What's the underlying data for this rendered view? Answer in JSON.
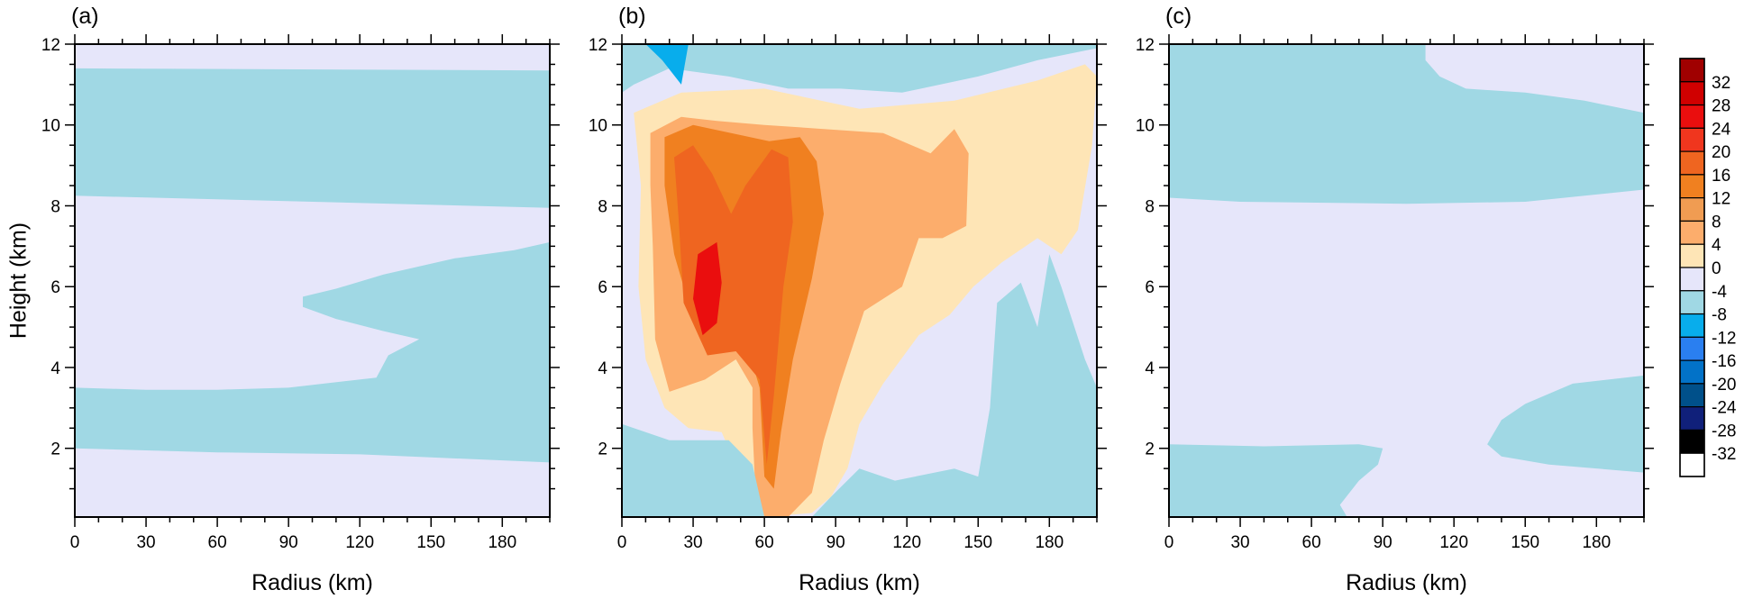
{
  "chart_data": [
    {
      "type": "contour",
      "panel_label": "(a)",
      "xlabel": "Radius (km)",
      "ylabel": "Height (km)",
      "xlim": [
        0,
        200
      ],
      "ylim": [
        0.3,
        12
      ],
      "xticks": [
        "0",
        "30",
        "60",
        "90",
        "120",
        "150",
        "180"
      ],
      "yticks": [
        "2",
        "4",
        "6",
        "8",
        "10",
        "12"
      ],
      "contour_regions": [
        {
          "level": "-4 to 0",
          "description": "upper band",
          "shape": [
            [
              0,
              11.4
            ],
            [
              200,
              11.35
            ],
            [
              200,
              7.95
            ],
            [
              0,
              8.25
            ]
          ]
        },
        {
          "level": "-4 to 0",
          "description": "mid-level wedge",
          "shape": [
            [
              200,
              7.1
            ],
            [
              185,
              6.9
            ],
            [
              160,
              6.7
            ],
            [
              130,
              6.3
            ],
            [
              110,
              5.95
            ],
            [
              96,
              5.75
            ],
            [
              96,
              5.5
            ],
            [
              110,
              5.2
            ],
            [
              130,
              4.9
            ],
            [
              145,
              4.7
            ],
            [
              132,
              4.3
            ],
            [
              127,
              3.75
            ],
            [
              90,
              3.5
            ],
            [
              60,
              3.45
            ],
            [
              30,
              3.45
            ],
            [
              0,
              3.5
            ],
            [
              0,
              2.0
            ],
            [
              60,
              1.9
            ],
            [
              120,
              1.85
            ],
            [
              200,
              1.65
            ]
          ]
        }
      ]
    },
    {
      "type": "contour",
      "panel_label": "(b)",
      "xlabel": "Radius (km)",
      "ylabel": "",
      "xlim": [
        0,
        200
      ],
      "ylim": [
        0.3,
        12
      ],
      "xticks": [
        "0",
        "30",
        "60",
        "90",
        "120",
        "150",
        "180"
      ],
      "yticks": [
        "2",
        "4",
        "6",
        "8",
        "10",
        "12"
      ],
      "contour_regions": [
        {
          "level": "0 to 4",
          "description": "broad positive band",
          "shape": [
            [
              5,
              10.3
            ],
            [
              25,
              10.8
            ],
            [
              60,
              10.9
            ],
            [
              100,
              10.4
            ],
            [
              140,
              10.6
            ],
            [
              175,
              11.1
            ],
            [
              195,
              11.5
            ],
            [
              200,
              11.2
            ],
            [
              198,
              9.5
            ],
            [
              192,
              7.4
            ],
            [
              185,
              6.8
            ],
            [
              175,
              7.2
            ],
            [
              160,
              6.6
            ],
            [
              148,
              6.0
            ],
            [
              138,
              5.3
            ],
            [
              125,
              4.8
            ],
            [
              110,
              3.6
            ],
            [
              100,
              2.6
            ],
            [
              95,
              1.5
            ],
            [
              88,
              0.8
            ],
            [
              80,
              0.4
            ],
            [
              60,
              0.3
            ],
            [
              50,
              1.3
            ],
            [
              42,
              2.4
            ],
            [
              28,
              2.5
            ],
            [
              18,
              3.0
            ],
            [
              10,
              4.2
            ],
            [
              7,
              6.0
            ],
            [
              8,
              8.5
            ]
          ]
        },
        {
          "level": "4 to 8",
          "description": "deep convective tower",
          "shape": [
            [
              12,
              9.8
            ],
            [
              25,
              10.2
            ],
            [
              40,
              10.1
            ],
            [
              60,
              10.0
            ],
            [
              85,
              9.9
            ],
            [
              110,
              9.8
            ],
            [
              130,
              9.3
            ],
            [
              140,
              9.9
            ],
            [
              146,
              9.3
            ],
            [
              145,
              7.5
            ],
            [
              135,
              7.2
            ],
            [
              125,
              7.2
            ],
            [
              118,
              6.0
            ],
            [
              102,
              5.4
            ],
            [
              92,
              3.6
            ],
            [
              85,
              2.2
            ],
            [
              80,
              0.9
            ],
            [
              70,
              0.3
            ],
            [
              60,
              0.3
            ],
            [
              56,
              1.2
            ],
            [
              55,
              2.5
            ],
            [
              55,
              3.5
            ],
            [
              48,
              4.2
            ],
            [
              35,
              3.7
            ],
            [
              20,
              3.4
            ],
            [
              14,
              4.7
            ],
            [
              13,
              7.0
            ],
            [
              12,
              8.5
            ]
          ]
        },
        {
          "level": "8 to 12",
          "description": "core",
          "shape": [
            [
              18,
              9.7
            ],
            [
              30,
              10.0
            ],
            [
              46,
              9.8
            ],
            [
              62,
              9.6
            ],
            [
              75,
              9.7
            ],
            [
              82,
              9.1
            ],
            [
              85,
              7.8
            ],
            [
              80,
              6.2
            ],
            [
              72,
              4.2
            ],
            [
              67,
              2.4
            ],
            [
              64,
              1.0
            ],
            [
              60,
              1.3
            ],
            [
              58,
              3.5
            ],
            [
              52,
              4.7
            ],
            [
              40,
              4.4
            ],
            [
              30,
              5.2
            ],
            [
              22,
              6.8
            ],
            [
              18,
              8.5
            ]
          ]
        },
        {
          "level": "12 to 16",
          "description": "inner core",
          "shape": [
            [
              22,
              9.2
            ],
            [
              30,
              9.5
            ],
            [
              38,
              8.8
            ],
            [
              46,
              7.8
            ],
            [
              52,
              8.5
            ],
            [
              63,
              9.4
            ],
            [
              70,
              9.2
            ],
            [
              72,
              7.6
            ],
            [
              68,
              6.0
            ],
            [
              64,
              3.3
            ],
            [
              61,
              1.6
            ],
            [
              58,
              3.7
            ],
            [
              48,
              4.4
            ],
            [
              36,
              4.3
            ],
            [
              26,
              5.6
            ],
            [
              24,
              7.6
            ]
          ]
        },
        {
          "level": "16 to 20",
          "description": "maxima",
          "shape": [
            [
              32,
              6.8
            ],
            [
              40,
              7.1
            ],
            [
              42,
              6.1
            ],
            [
              40,
              5.1
            ],
            [
              34,
              4.8
            ],
            [
              30,
              5.7
            ]
          ]
        },
        {
          "level": "-4 to 0",
          "description": "upper negative",
          "shape": [
            [
              0,
              12.0
            ],
            [
              200,
              12.0
            ],
            [
              200,
              11.9
            ],
            [
              175,
              11.6
            ],
            [
              150,
              11.2
            ],
            [
              118,
              10.8
            ],
            [
              92,
              10.9
            ],
            [
              70,
              10.9
            ],
            [
              45,
              11.2
            ],
            [
              20,
              11.4
            ],
            [
              5,
              11.0
            ],
            [
              0,
              10.8
            ]
          ]
        },
        {
          "level": "-8 to -4",
          "description": "upper strong negative",
          "shape": [
            [
              10,
              12.0
            ],
            [
              28,
              12.0
            ],
            [
              25,
              11.0
            ],
            [
              17,
              11.6
            ]
          ]
        },
        {
          "level": "-4 to 0",
          "description": "lower negative",
          "shape": [
            [
              0,
              2.6
            ],
            [
              20,
              2.2
            ],
            [
              45,
              2.2
            ],
            [
              55,
              1.6
            ],
            [
              60,
              0.3
            ],
            [
              0,
              0.3
            ]
          ]
        },
        {
          "level": "-4 to 0",
          "description": "outer lower negative",
          "shape": [
            [
              88,
              0.8
            ],
            [
              100,
              1.5
            ],
            [
              115,
              1.2
            ],
            [
              140,
              1.5
            ],
            [
              150,
              1.3
            ],
            [
              155,
              3.0
            ],
            [
              158,
              5.6
            ],
            [
              168,
              6.1
            ],
            [
              175,
              5.0
            ],
            [
              180,
              6.8
            ],
            [
              185,
              6.0
            ],
            [
              195,
              4.2
            ],
            [
              200,
              3.5
            ],
            [
              200,
              0.3
            ],
            [
              80,
              0.3
            ]
          ]
        }
      ]
    },
    {
      "type": "contour",
      "panel_label": "(c)",
      "xlabel": "Radius (km)",
      "ylabel": "",
      "xlim": [
        0,
        200
      ],
      "ylim": [
        0.3,
        12
      ],
      "xticks": [
        "0",
        "30",
        "60",
        "90",
        "120",
        "150",
        "180"
      ],
      "yticks": [
        "2",
        "4",
        "6",
        "8",
        "10",
        "12"
      ],
      "contour_regions": [
        {
          "level": "-4 to 0",
          "description": "upper band",
          "shape": [
            [
              0,
              12.0
            ],
            [
              108,
              12.0
            ],
            [
              108,
              11.6
            ],
            [
              114,
              11.2
            ],
            [
              125,
              10.9
            ],
            [
              150,
              10.8
            ],
            [
              175,
              10.6
            ],
            [
              200,
              10.3
            ],
            [
              200,
              8.4
            ],
            [
              150,
              8.1
            ],
            [
              100,
              8.05
            ],
            [
              30,
              8.1
            ],
            [
              0,
              8.2
            ]
          ]
        },
        {
          "level": "-4 to 0",
          "description": "lower region",
          "shape": [
            [
              0,
              2.1
            ],
            [
              40,
              2.05
            ],
            [
              80,
              2.1
            ],
            [
              90,
              2.0
            ],
            [
              88,
              1.6
            ],
            [
              80,
              1.2
            ],
            [
              72,
              0.6
            ],
            [
              75,
              0.3
            ],
            [
              0,
              0.3
            ]
          ]
        },
        {
          "level": "-4 to 0",
          "description": "outer lower region",
          "shape": [
            [
              200,
              3.8
            ],
            [
              170,
              3.6
            ],
            [
              150,
              3.1
            ],
            [
              140,
              2.7
            ],
            [
              134,
              2.1
            ],
            [
              140,
              1.8
            ],
            [
              160,
              1.6
            ],
            [
              200,
              1.4
            ]
          ]
        }
      ]
    }
  ],
  "colorbar": {
    "labels": [
      "32",
      "28",
      "24",
      "20",
      "16",
      "12",
      "8",
      "4",
      "0",
      "-4",
      "-8",
      "-12",
      "-16",
      "-20",
      "-24",
      "-28",
      "-32"
    ],
    "colors": [
      "#a00000",
      "#d00000",
      "#ea0e0e",
      "#f0361e",
      "#ef6520",
      "#f08020",
      "#f09c52",
      "#fcad6c",
      "#fee5b6",
      "#e6e6fa",
      "#a0d8e4",
      "#08adec",
      "#2a7ff0",
      "#0272c8",
      "#00508a",
      "#10207a",
      "#000000",
      "#ffffff"
    ]
  },
  "level_colors": {
    "-8 to -4": "#08adec",
    "-4 to 0": "#a0d8e4",
    "0 to 4": "#fee5b6",
    "4 to 8": "#fcad6c",
    "8 to 12": "#f08020",
    "12 to 16": "#ef6520",
    "16 to 20": "#ea0e0e",
    "background": "#e6e6fa"
  }
}
